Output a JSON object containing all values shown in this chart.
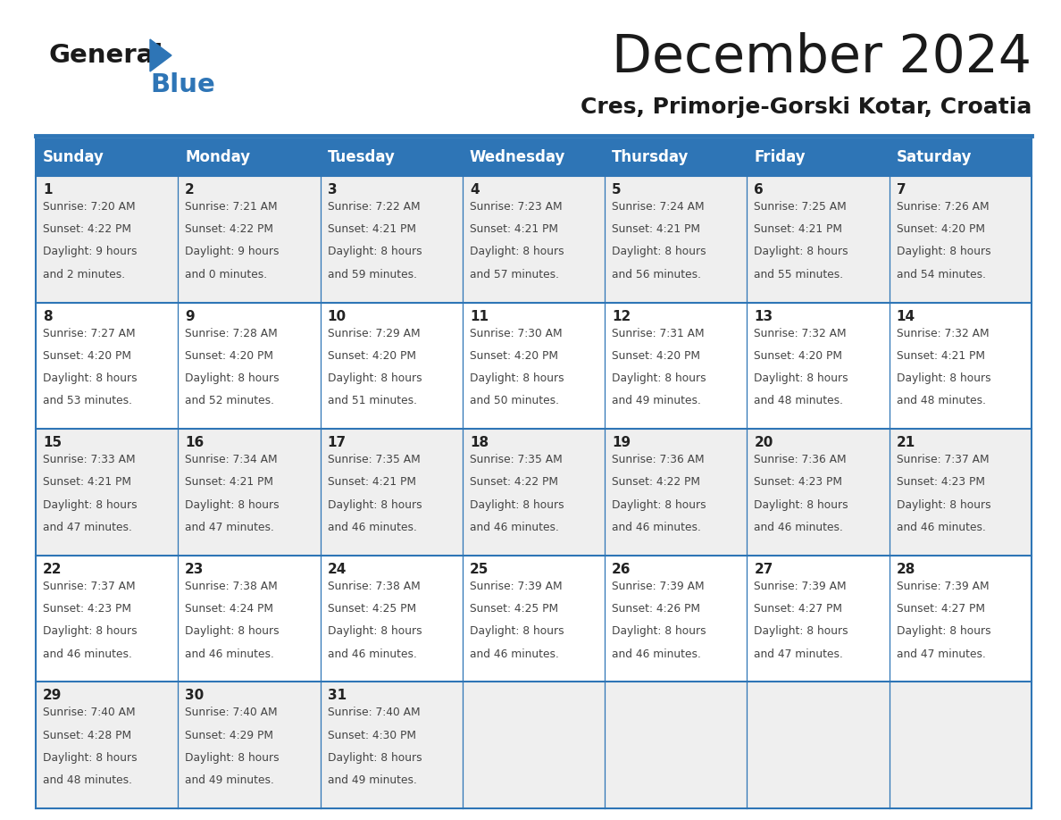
{
  "title": "December 2024",
  "subtitle": "Cres, Primorje-Gorski Kotar, Croatia",
  "days_of_week": [
    "Sunday",
    "Monday",
    "Tuesday",
    "Wednesday",
    "Thursday",
    "Friday",
    "Saturday"
  ],
  "header_bg_color": "#2e75b6",
  "header_text_color": "#ffffff",
  "row_bg_even": "#efefef",
  "row_bg_odd": "#ffffff",
  "cell_text_color": "#444444",
  "day_num_color": "#222222",
  "grid_line_color": "#2e75b6",
  "logo_general_color": "#1a1a1a",
  "logo_blue_color": "#2e75b6",
  "calendar_data": [
    [
      {
        "day": 1,
        "sunrise": "7:20 AM",
        "sunset": "4:22 PM",
        "daylight": "9 hours and 2 minutes."
      },
      {
        "day": 2,
        "sunrise": "7:21 AM",
        "sunset": "4:22 PM",
        "daylight": "9 hours and 0 minutes."
      },
      {
        "day": 3,
        "sunrise": "7:22 AM",
        "sunset": "4:21 PM",
        "daylight": "8 hours and 59 minutes."
      },
      {
        "day": 4,
        "sunrise": "7:23 AM",
        "sunset": "4:21 PM",
        "daylight": "8 hours and 57 minutes."
      },
      {
        "day": 5,
        "sunrise": "7:24 AM",
        "sunset": "4:21 PM",
        "daylight": "8 hours and 56 minutes."
      },
      {
        "day": 6,
        "sunrise": "7:25 AM",
        "sunset": "4:21 PM",
        "daylight": "8 hours and 55 minutes."
      },
      {
        "day": 7,
        "sunrise": "7:26 AM",
        "sunset": "4:20 PM",
        "daylight": "8 hours and 54 minutes."
      }
    ],
    [
      {
        "day": 8,
        "sunrise": "7:27 AM",
        "sunset": "4:20 PM",
        "daylight": "8 hours and 53 minutes."
      },
      {
        "day": 9,
        "sunrise": "7:28 AM",
        "sunset": "4:20 PM",
        "daylight": "8 hours and 52 minutes."
      },
      {
        "day": 10,
        "sunrise": "7:29 AM",
        "sunset": "4:20 PM",
        "daylight": "8 hours and 51 minutes."
      },
      {
        "day": 11,
        "sunrise": "7:30 AM",
        "sunset": "4:20 PM",
        "daylight": "8 hours and 50 minutes."
      },
      {
        "day": 12,
        "sunrise": "7:31 AM",
        "sunset": "4:20 PM",
        "daylight": "8 hours and 49 minutes."
      },
      {
        "day": 13,
        "sunrise": "7:32 AM",
        "sunset": "4:20 PM",
        "daylight": "8 hours and 48 minutes."
      },
      {
        "day": 14,
        "sunrise": "7:32 AM",
        "sunset": "4:21 PM",
        "daylight": "8 hours and 48 minutes."
      }
    ],
    [
      {
        "day": 15,
        "sunrise": "7:33 AM",
        "sunset": "4:21 PM",
        "daylight": "8 hours and 47 minutes."
      },
      {
        "day": 16,
        "sunrise": "7:34 AM",
        "sunset": "4:21 PM",
        "daylight": "8 hours and 47 minutes."
      },
      {
        "day": 17,
        "sunrise": "7:35 AM",
        "sunset": "4:21 PM",
        "daylight": "8 hours and 46 minutes."
      },
      {
        "day": 18,
        "sunrise": "7:35 AM",
        "sunset": "4:22 PM",
        "daylight": "8 hours and 46 minutes."
      },
      {
        "day": 19,
        "sunrise": "7:36 AM",
        "sunset": "4:22 PM",
        "daylight": "8 hours and 46 minutes."
      },
      {
        "day": 20,
        "sunrise": "7:36 AM",
        "sunset": "4:23 PM",
        "daylight": "8 hours and 46 minutes."
      },
      {
        "day": 21,
        "sunrise": "7:37 AM",
        "sunset": "4:23 PM",
        "daylight": "8 hours and 46 minutes."
      }
    ],
    [
      {
        "day": 22,
        "sunrise": "7:37 AM",
        "sunset": "4:23 PM",
        "daylight": "8 hours and 46 minutes."
      },
      {
        "day": 23,
        "sunrise": "7:38 AM",
        "sunset": "4:24 PM",
        "daylight": "8 hours and 46 minutes."
      },
      {
        "day": 24,
        "sunrise": "7:38 AM",
        "sunset": "4:25 PM",
        "daylight": "8 hours and 46 minutes."
      },
      {
        "day": 25,
        "sunrise": "7:39 AM",
        "sunset": "4:25 PM",
        "daylight": "8 hours and 46 minutes."
      },
      {
        "day": 26,
        "sunrise": "7:39 AM",
        "sunset": "4:26 PM",
        "daylight": "8 hours and 46 minutes."
      },
      {
        "day": 27,
        "sunrise": "7:39 AM",
        "sunset": "4:27 PM",
        "daylight": "8 hours and 47 minutes."
      },
      {
        "day": 28,
        "sunrise": "7:39 AM",
        "sunset": "4:27 PM",
        "daylight": "8 hours and 47 minutes."
      }
    ],
    [
      {
        "day": 29,
        "sunrise": "7:40 AM",
        "sunset": "4:28 PM",
        "daylight": "8 hours and 48 minutes."
      },
      {
        "day": 30,
        "sunrise": "7:40 AM",
        "sunset": "4:29 PM",
        "daylight": "8 hours and 49 minutes."
      },
      {
        "day": 31,
        "sunrise": "7:40 AM",
        "sunset": "4:30 PM",
        "daylight": "8 hours and 49 minutes."
      },
      null,
      null,
      null,
      null
    ]
  ]
}
